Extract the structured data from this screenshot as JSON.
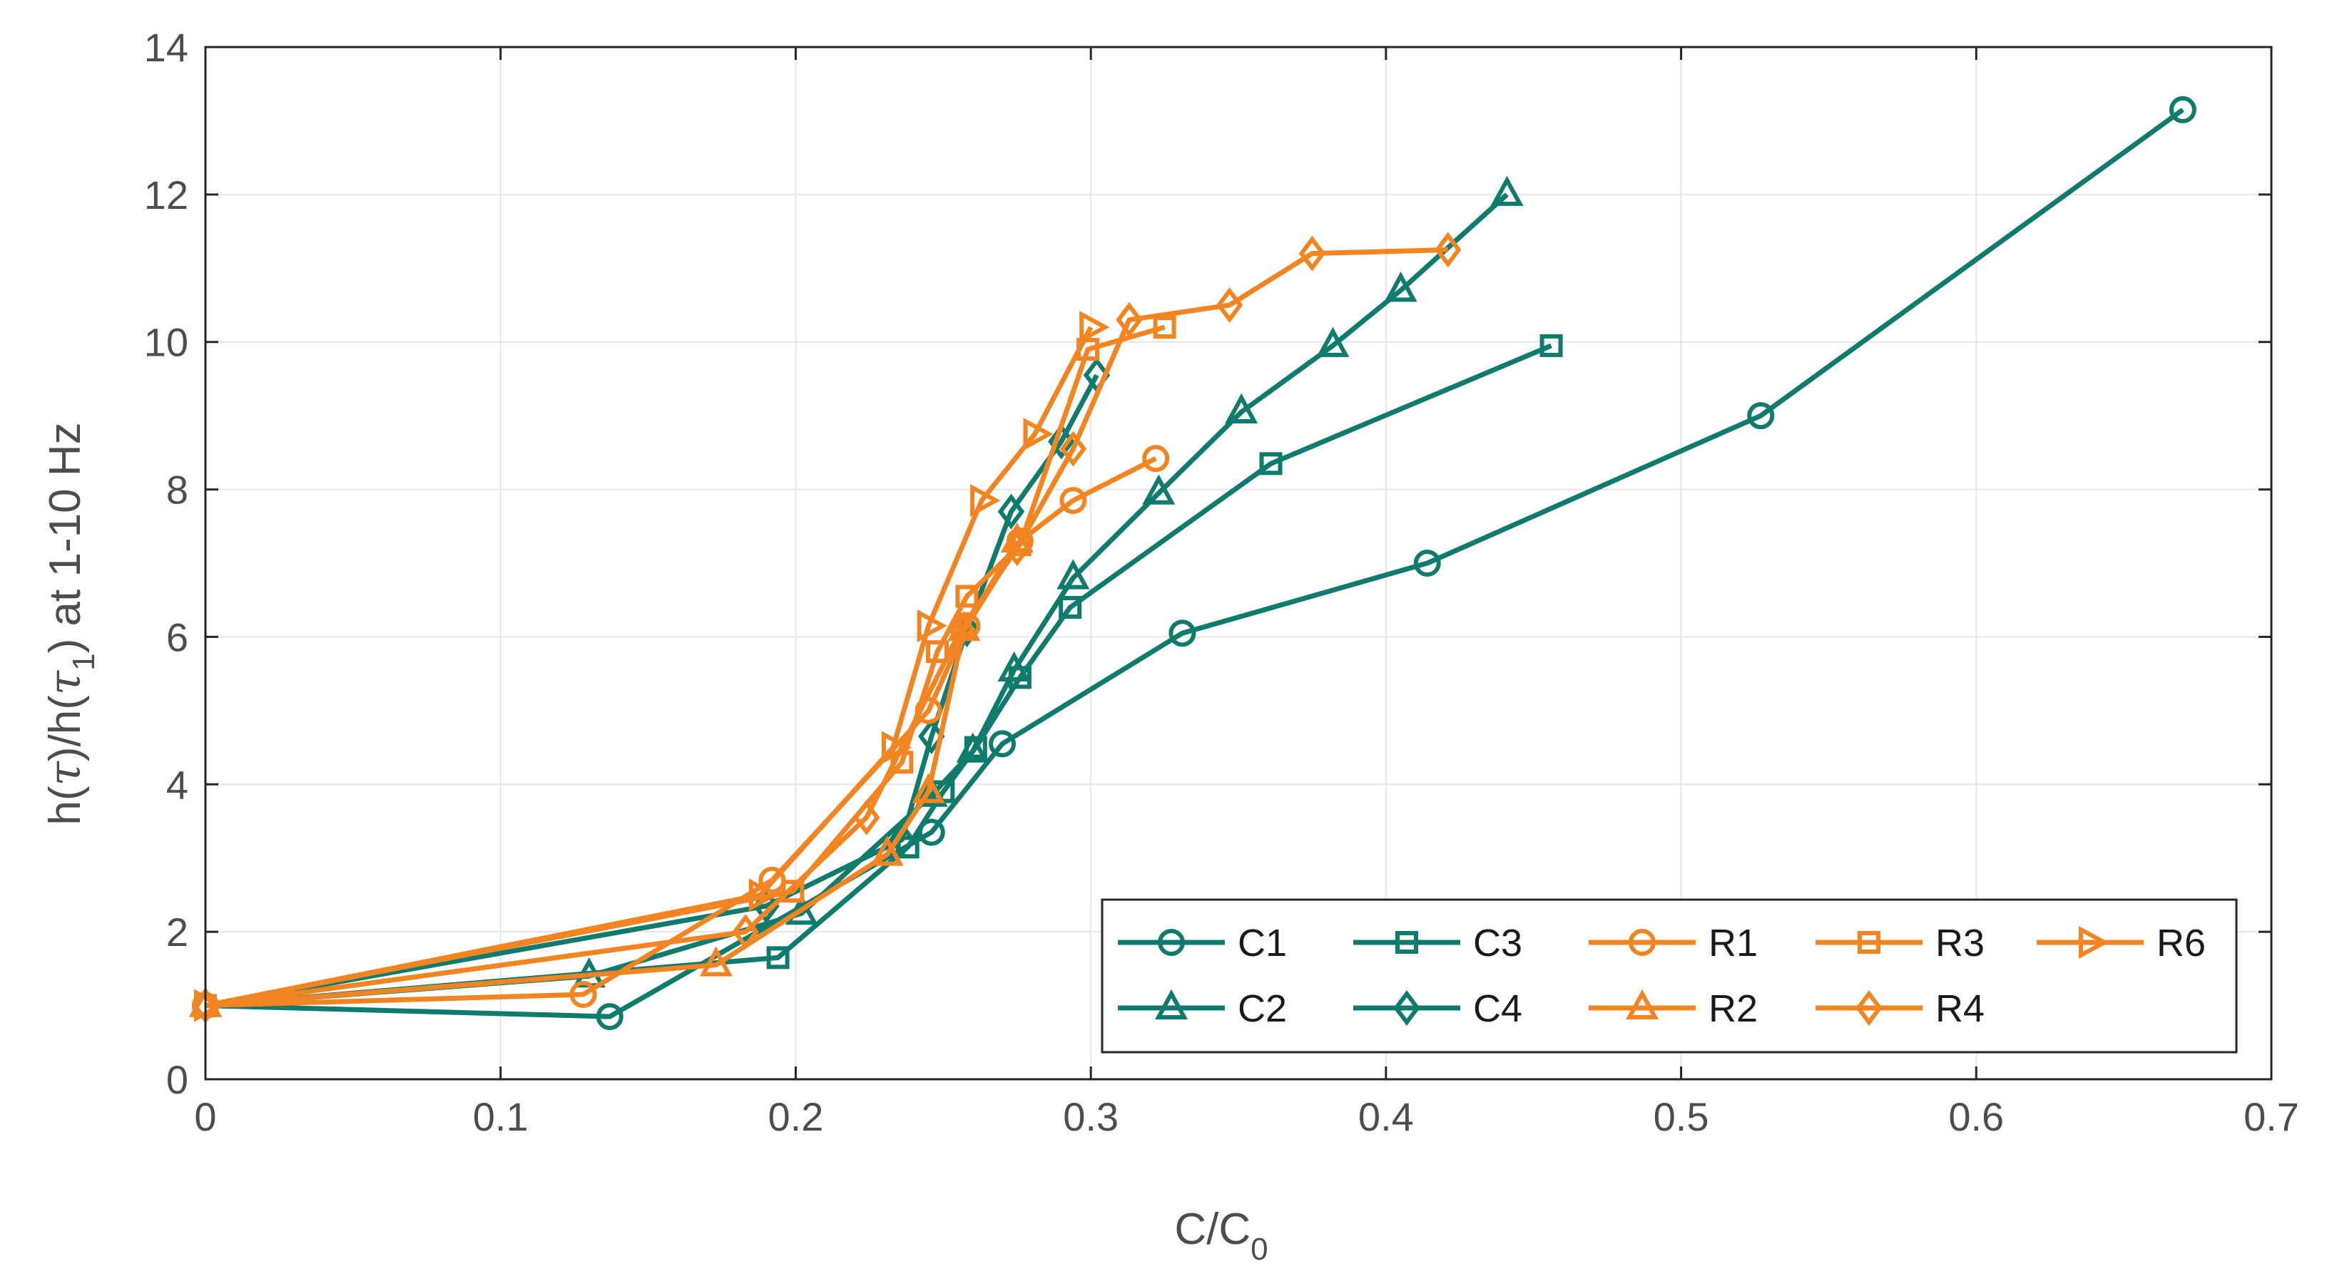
{
  "chart_data": {
    "type": "line",
    "title": "",
    "xlabel": "C/C",
    "xlabel_subscript": "0",
    "ylabel_parts": [
      "h(",
      "τ",
      ")/h(",
      "τ",
      "1",
      ") at 1-10 Hz"
    ],
    "xlim": [
      0,
      0.7
    ],
    "ylim": [
      0,
      14
    ],
    "xticks": [
      0,
      0.1,
      0.2,
      0.3,
      0.4,
      0.5,
      0.6,
      0.7
    ],
    "xtick_labels": [
      "0",
      "0.1",
      "0.2",
      "0.3",
      "0.4",
      "0.5",
      "0.6",
      "0.7"
    ],
    "yticks": [
      0,
      2,
      4,
      6,
      8,
      10,
      12,
      14
    ],
    "ytick_labels": [
      "0",
      "2",
      "4",
      "6",
      "8",
      "10",
      "12",
      "14"
    ],
    "grid": true,
    "legend_position": "bottom-right",
    "colors": {
      "C": "#0f7b6c",
      "R": "#f28522"
    },
    "series": [
      {
        "name": "C1",
        "group": "C",
        "marker": "circle",
        "x": [
          0,
          0.137,
          0.246,
          0.27,
          0.331,
          0.414,
          0.527,
          0.67
        ],
        "y": [
          1.0,
          0.85,
          3.35,
          4.55,
          6.05,
          7.0,
          9.0,
          13.15
        ]
      },
      {
        "name": "C2",
        "group": "C",
        "marker": "triangle-up",
        "x": [
          0,
          0.13,
          0.202,
          0.246,
          0.26,
          0.274,
          0.294,
          0.323,
          0.351,
          0.382,
          0.405,
          0.441
        ],
        "y": [
          1.0,
          1.4,
          2.25,
          3.85,
          4.45,
          5.55,
          6.8,
          7.95,
          9.05,
          9.95,
          10.7,
          12.0
        ]
      },
      {
        "name": "C3",
        "group": "C",
        "marker": "square",
        "x": [
          0,
          0.194,
          0.238,
          0.25,
          0.261,
          0.276,
          0.293,
          0.361,
          0.456
        ],
        "y": [
          1.0,
          1.65,
          3.15,
          3.9,
          4.5,
          5.45,
          6.4,
          8.35,
          9.95
        ]
      },
      {
        "name": "C4",
        "group": "C",
        "marker": "diamond",
        "x": [
          0,
          0.19,
          0.236,
          0.246,
          0.258,
          0.273,
          0.29,
          0.302
        ],
        "y": [
          1.0,
          2.35,
          3.25,
          4.65,
          6.1,
          7.7,
          8.65,
          9.55
        ]
      },
      {
        "name": "R1",
        "group": "R",
        "marker": "circle",
        "x": [
          0,
          0.128,
          0.192,
          0.245,
          0.258,
          0.276,
          0.294,
          0.322
        ],
        "y": [
          1.0,
          1.15,
          2.7,
          5.0,
          6.15,
          7.3,
          7.85,
          8.42
        ]
      },
      {
        "name": "R2",
        "group": "R",
        "marker": "triangle-up",
        "x": [
          0,
          0.173,
          0.231,
          0.245,
          0.257,
          0.275
        ],
        "y": [
          1.0,
          1.55,
          3.05,
          3.9,
          6.1,
          7.3
        ]
      },
      {
        "name": "R3",
        "group": "R",
        "marker": "square",
        "x": [
          0,
          0.199,
          0.236,
          0.248,
          0.258,
          0.276,
          0.299,
          0.325
        ],
        "y": [
          1.0,
          2.55,
          4.3,
          5.8,
          6.55,
          7.25,
          9.9,
          10.2
        ]
      },
      {
        "name": "R4",
        "group": "R",
        "marker": "diamond",
        "x": [
          0,
          0.183,
          0.224,
          0.256,
          0.275,
          0.294,
          0.313,
          0.347,
          0.375,
          0.421
        ],
        "y": [
          1.0,
          2.0,
          3.55,
          6.1,
          7.2,
          8.55,
          10.3,
          10.5,
          11.2,
          11.25
        ]
      },
      {
        "name": "R6",
        "group": "R",
        "marker": "triangle-right",
        "x": [
          0,
          0.188,
          0.233,
          0.245,
          0.263,
          0.281,
          0.3
        ],
        "y": [
          1.0,
          2.5,
          4.5,
          6.15,
          7.85,
          8.75,
          10.2
        ]
      }
    ],
    "legend_order": [
      "C1",
      "C3",
      "R1",
      "R3",
      "R6",
      "C2",
      "C4",
      "R2",
      "R4"
    ]
  }
}
